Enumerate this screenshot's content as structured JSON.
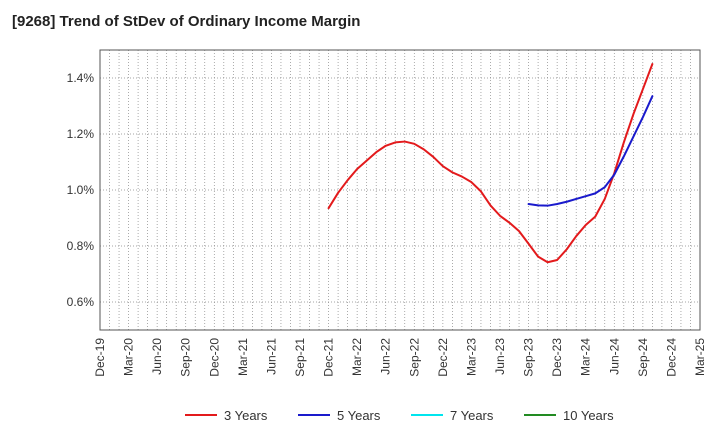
{
  "chart_data": {
    "type": "line",
    "title": "[9268]  Trend of StDev of Ordinary Income Margin",
    "xlabel": "",
    "ylabel": "",
    "ylim": [
      0.5,
      1.5
    ],
    "yticks": [
      0.6,
      0.8,
      1.0,
      1.2,
      1.4
    ],
    "ytick_labels": [
      "0.6%",
      "0.8%",
      "1.0%",
      "1.2%",
      "1.4%"
    ],
    "x_start": "Dec-19",
    "x_end": "Mar-25",
    "xtick_labels": [
      "Dec-19",
      "Mar-20",
      "Jun-20",
      "Sep-20",
      "Dec-20",
      "Mar-21",
      "Jun-21",
      "Sep-21",
      "Dec-21",
      "Mar-22",
      "Jun-22",
      "Sep-22",
      "Dec-22",
      "Mar-23",
      "Jun-23",
      "Sep-23",
      "Dec-23",
      "Mar-24",
      "Jun-24",
      "Sep-24",
      "Dec-24",
      "Mar-25"
    ],
    "grid": true,
    "legend_position": "bottom",
    "series": [
      {
        "name": "3 Years",
        "color": "#e31a1c",
        "points": [
          [
            "Dec-21",
            0.935
          ],
          [
            "Jan-22",
            0.99
          ],
          [
            "Feb-22",
            1.035
          ],
          [
            "Mar-22",
            1.075
          ],
          [
            "Apr-22",
            1.105
          ],
          [
            "May-22",
            1.135
          ],
          [
            "Jun-22",
            1.158
          ],
          [
            "Jul-22",
            1.17
          ],
          [
            "Aug-22",
            1.173
          ],
          [
            "Sep-22",
            1.165
          ],
          [
            "Oct-22",
            1.145
          ],
          [
            "Nov-22",
            1.118
          ],
          [
            "Dec-22",
            1.085
          ],
          [
            "Jan-23",
            1.063
          ],
          [
            "Feb-23",
            1.048
          ],
          [
            "Mar-23",
            1.028
          ],
          [
            "Apr-23",
            0.995
          ],
          [
            "May-23",
            0.945
          ],
          [
            "Jun-23",
            0.908
          ],
          [
            "Jul-23",
            0.883
          ],
          [
            "Aug-23",
            0.853
          ],
          [
            "Sep-23",
            0.808
          ],
          [
            "Oct-23",
            0.762
          ],
          [
            "Nov-23",
            0.742
          ],
          [
            "Dec-23",
            0.75
          ],
          [
            "Jan-24",
            0.788
          ],
          [
            "Feb-24",
            0.835
          ],
          [
            "Mar-24",
            0.875
          ],
          [
            "Apr-24",
            0.905
          ],
          [
            "May-24",
            0.968
          ],
          [
            "Jun-24",
            1.06
          ],
          [
            "Jul-24",
            1.17
          ],
          [
            "Aug-24",
            1.27
          ],
          [
            "Sep-24",
            1.36
          ],
          [
            "Oct-24",
            1.45
          ]
        ]
      },
      {
        "name": "5 Years",
        "color": "#1a1acc",
        "points": [
          [
            "Sep-23",
            0.95
          ],
          [
            "Oct-23",
            0.945
          ],
          [
            "Nov-23",
            0.944
          ],
          [
            "Dec-23",
            0.95
          ],
          [
            "Jan-24",
            0.958
          ],
          [
            "Feb-24",
            0.968
          ],
          [
            "Mar-24",
            0.978
          ],
          [
            "Apr-24",
            0.988
          ],
          [
            "May-24",
            1.01
          ],
          [
            "Jun-24",
            1.055
          ],
          [
            "Jul-24",
            1.12
          ],
          [
            "Aug-24",
            1.19
          ],
          [
            "Sep-24",
            1.26
          ],
          [
            "Oct-24",
            1.335
          ]
        ]
      },
      {
        "name": "7 Years",
        "color": "#00e5ee",
        "points": []
      },
      {
        "name": "10 Years",
        "color": "#228b22",
        "points": []
      }
    ]
  }
}
